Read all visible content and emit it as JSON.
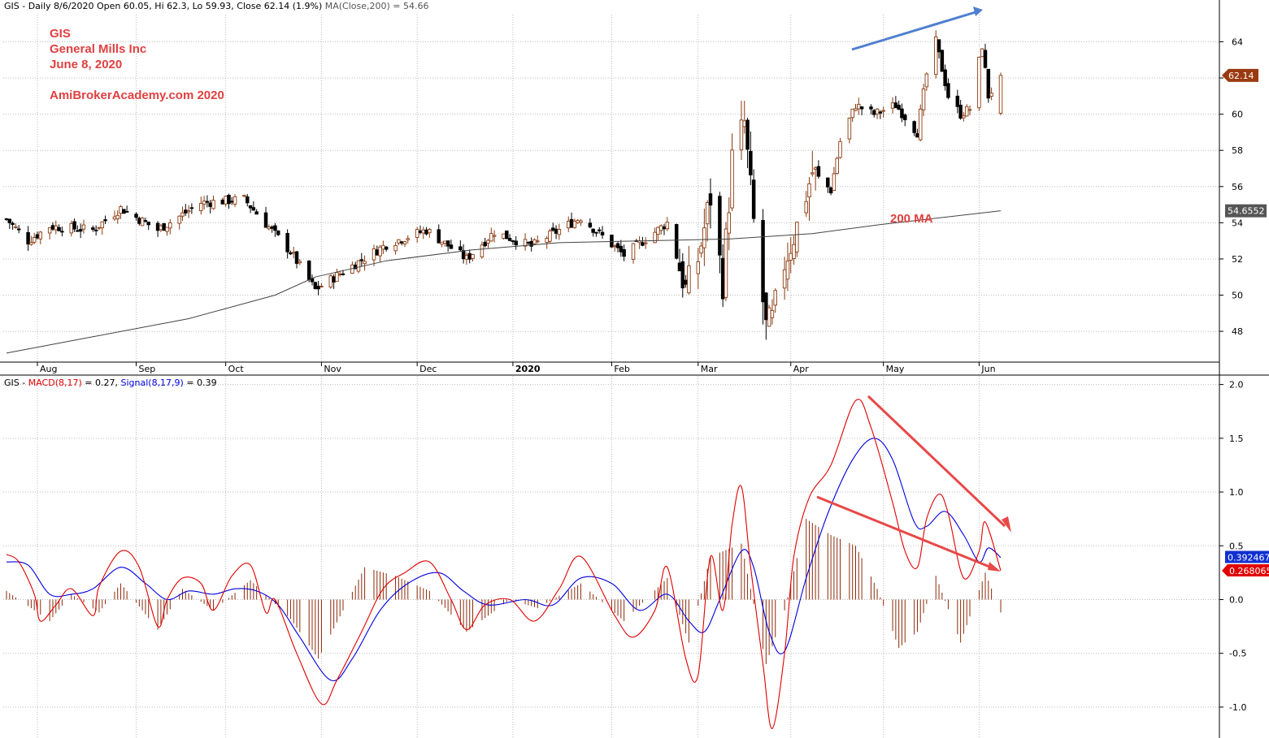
{
  "price_panel": {
    "header_prefix": "GIS - Daily 8/6/2020 Open 60.05, Hi 62.3, Lo 59.93, Close 62.14 (1.9%)",
    "header_ma": "MA(Close,200) = 54.66",
    "annotation_lines": [
      "GIS",
      "General Mills Inc",
      "June 8, 2020"
    ],
    "annotation_site": "AmiBrokerAcademy.com  2020",
    "ma_label": "200 MA",
    "last_close_label": "62.14",
    "ma_value_label": "54.6552",
    "y_ticks": [
      "64",
      "62",
      "60",
      "58",
      "56",
      "54",
      "52",
      "50",
      "48"
    ],
    "x_labels": [
      "Aug",
      "Sep",
      "Oct",
      "Nov",
      "Dec",
      "2020",
      "Feb",
      "Mar",
      "Apr",
      "May",
      "Jun"
    ]
  },
  "macd_panel": {
    "header_prefix": "GIS -",
    "macd_label": "MACD(8,17)",
    "macd_value": "= 0.27,",
    "signal_label": "Signal(8,17,9)",
    "signal_value": "= 0.39",
    "signal_value_label": "0.392467",
    "macd_value_label": "0.268065",
    "y_ticks": [
      "2.0",
      "1.5",
      "1.0",
      "0.5",
      "0.0",
      "-0.5",
      "-1.0"
    ]
  },
  "colors": {
    "up_candle": "#8b3a0f",
    "down_candle": "#000000",
    "macd": "#e00000",
    "signal": "#0000e0",
    "histogram": "#8b2a0a",
    "annotation": "#e04040",
    "blue_arrow": "#4f7fd0",
    "red_arrow": "#e84848"
  },
  "chart_data": [
    {
      "type": "candlestick",
      "title": "GIS - Daily 8/6/2020",
      "ylim": [
        46.3,
        65.5
      ],
      "x_labels": [
        "Aug",
        "Sep",
        "Oct",
        "Nov",
        "Dec",
        "2020",
        "Feb",
        "Mar",
        "Apr",
        "May",
        "Jun"
      ],
      "price_keypoints": [
        {
          "date": "2019-07-22",
          "close": 54.2
        },
        {
          "date": "2019-07-29",
          "close": 53.0
        },
        {
          "date": "2019-08-05",
          "close": 53.8
        },
        {
          "date": "2019-08-19",
          "close": 53.6
        },
        {
          "date": "2019-08-28",
          "close": 54.8
        },
        {
          "date": "2019-09-09",
          "close": 53.6
        },
        {
          "date": "2019-09-23",
          "close": 55.1
        },
        {
          "date": "2019-10-07",
          "close": 55.3
        },
        {
          "date": "2019-10-22",
          "close": 52.4
        },
        {
          "date": "2019-10-30",
          "close": 50.3
        },
        {
          "date": "2019-11-08",
          "close": 51.3
        },
        {
          "date": "2019-11-22",
          "close": 52.8
        },
        {
          "date": "2019-12-05",
          "close": 53.6
        },
        {
          "date": "2019-12-18",
          "close": 52.0
        },
        {
          "date": "2019-12-27",
          "close": 53.5
        },
        {
          "date": "2020-01-08",
          "close": 52.7
        },
        {
          "date": "2020-01-24",
          "close": 54.3
        },
        {
          "date": "2020-02-07",
          "close": 52.2
        },
        {
          "date": "2020-02-21",
          "close": 54.0
        },
        {
          "date": "2020-02-27",
          "close": 50.3
        },
        {
          "date": "2020-03-02",
          "close": 52.0
        },
        {
          "date": "2020-03-06",
          "close": 55.4
        },
        {
          "date": "2020-03-10",
          "close": 50.7
        },
        {
          "date": "2020-03-13",
          "close": 57.5
        },
        {
          "date": "2020-03-17",
          "close": 59.5
        },
        {
          "date": "2020-03-20",
          "close": 54.0
        },
        {
          "date": "2020-03-24",
          "close": 48.2
        },
        {
          "date": "2020-03-26",
          "close": 48.6
        },
        {
          "date": "2020-03-30",
          "close": 51.8
        },
        {
          "date": "2020-04-03",
          "close": 53.8
        },
        {
          "date": "2020-04-08",
          "close": 56.8
        },
        {
          "date": "2020-04-14",
          "close": 55.8
        },
        {
          "date": "2020-04-17",
          "close": 58.5
        },
        {
          "date": "2020-04-22",
          "close": 60.5
        },
        {
          "date": "2020-04-28",
          "close": 60.0
        },
        {
          "date": "2020-05-05",
          "close": 60.5
        },
        {
          "date": "2020-05-12",
          "close": 59.0
        },
        {
          "date": "2020-05-15",
          "close": 62.2
        },
        {
          "date": "2020-05-18",
          "close": 64.0
        },
        {
          "date": "2020-05-22",
          "close": 61.0
        },
        {
          "date": "2020-05-26",
          "close": 60.0
        },
        {
          "date": "2020-05-29",
          "close": 60.3
        },
        {
          "date": "2020-06-02",
          "close": 63.8
        },
        {
          "date": "2020-06-04",
          "close": 61.0
        },
        {
          "date": "2020-06-08",
          "close": 62.14
        }
      ],
      "ma200_keypoints": [
        {
          "date": "2019-07-22",
          "value": 46.8
        },
        {
          "date": "2019-08-19",
          "value": 47.7
        },
        {
          "date": "2019-09-19",
          "value": 48.7
        },
        {
          "date": "2019-10-17",
          "value": 50.0
        },
        {
          "date": "2019-10-30",
          "value": 51.0
        },
        {
          "date": "2019-11-22",
          "value": 51.9
        },
        {
          "date": "2019-12-20",
          "value": 52.5
        },
        {
          "date": "2020-01-17",
          "value": 52.9
        },
        {
          "date": "2020-02-14",
          "value": 53.0
        },
        {
          "date": "2020-03-12",
          "value": 53.1
        },
        {
          "date": "2020-04-08",
          "value": 53.4
        },
        {
          "date": "2020-04-30",
          "value": 53.9
        },
        {
          "date": "2020-06-08",
          "value": 54.66
        }
      ]
    },
    {
      "type": "line",
      "title": "MACD(8,17) / Signal(8,17,9)",
      "ylim": [
        -1.28,
        2.08
      ],
      "series": [
        {
          "name": "MACD(8,17)",
          "last": 0.27,
          "values": [
            {
              "date": "2019-07-22",
              "v": 0.42
            },
            {
              "date": "2019-07-26",
              "v": 0.35
            },
            {
              "date": "2019-07-31",
              "v": 0.05
            },
            {
              "date": "2019-08-02",
              "v": -0.2
            },
            {
              "date": "2019-08-07",
              "v": -0.05
            },
            {
              "date": "2019-08-12",
              "v": 0.1
            },
            {
              "date": "2019-08-19",
              "v": -0.15
            },
            {
              "date": "2019-08-21",
              "v": 0.12
            },
            {
              "date": "2019-08-28",
              "v": 0.45
            },
            {
              "date": "2019-09-03",
              "v": 0.3
            },
            {
              "date": "2019-09-09",
              "v": -0.25
            },
            {
              "date": "2019-09-12",
              "v": 0.0
            },
            {
              "date": "2019-09-17",
              "v": 0.2
            },
            {
              "date": "2019-09-23",
              "v": 0.15
            },
            {
              "date": "2019-09-27",
              "v": -0.1
            },
            {
              "date": "2019-10-03",
              "v": 0.22
            },
            {
              "date": "2019-10-09",
              "v": 0.32
            },
            {
              "date": "2019-10-14",
              "v": -0.12
            },
            {
              "date": "2019-10-17",
              "v": 0.0
            },
            {
              "date": "2019-10-24",
              "v": -0.5
            },
            {
              "date": "2019-11-01",
              "v": -0.97
            },
            {
              "date": "2019-11-06",
              "v": -0.75
            },
            {
              "date": "2019-11-14",
              "v": -0.3
            },
            {
              "date": "2019-11-21",
              "v": 0.1
            },
            {
              "date": "2019-11-28",
              "v": 0.25
            },
            {
              "date": "2019-12-06",
              "v": 0.35
            },
            {
              "date": "2019-12-13",
              "v": 0.0
            },
            {
              "date": "2019-12-18",
              "v": -0.28
            },
            {
              "date": "2019-12-24",
              "v": -0.05
            },
            {
              "date": "2020-01-01",
              "v": 0.0
            },
            {
              "date": "2020-01-09",
              "v": -0.2
            },
            {
              "date": "2020-01-17",
              "v": 0.1
            },
            {
              "date": "2020-01-24",
              "v": 0.4
            },
            {
              "date": "2020-02-04",
              "v": -0.15
            },
            {
              "date": "2020-02-10",
              "v": -0.35
            },
            {
              "date": "2020-02-17",
              "v": -0.1
            },
            {
              "date": "2020-02-21",
              "v": 0.3
            },
            {
              "date": "2020-02-27",
              "v": -0.55
            },
            {
              "date": "2020-03-02",
              "v": -0.7
            },
            {
              "date": "2020-03-06",
              "v": 0.4
            },
            {
              "date": "2020-03-10",
              "v": -0.1
            },
            {
              "date": "2020-03-13",
              "v": 0.7
            },
            {
              "date": "2020-03-16",
              "v": 1.05
            },
            {
              "date": "2020-03-19",
              "v": 0.3
            },
            {
              "date": "2020-03-23",
              "v": -0.6
            },
            {
              "date": "2020-03-26",
              "v": -1.2
            },
            {
              "date": "2020-03-30",
              "v": -0.5
            },
            {
              "date": "2020-04-02",
              "v": 0.4
            },
            {
              "date": "2020-04-07",
              "v": 0.95
            },
            {
              "date": "2020-04-14",
              "v": 1.25
            },
            {
              "date": "2020-04-22",
              "v": 1.85
            },
            {
              "date": "2020-04-27",
              "v": 1.6
            },
            {
              "date": "2020-05-04",
              "v": 0.9
            },
            {
              "date": "2020-05-08",
              "v": 0.45
            },
            {
              "date": "2020-05-12",
              "v": 0.3
            },
            {
              "date": "2020-05-15",
              "v": 0.75
            },
            {
              "date": "2020-05-19",
              "v": 0.98
            },
            {
              "date": "2020-05-22",
              "v": 0.8
            },
            {
              "date": "2020-05-27",
              "v": 0.2
            },
            {
              "date": "2020-06-01",
              "v": 0.45
            },
            {
              "date": "2020-06-03",
              "v": 0.72
            },
            {
              "date": "2020-06-08",
              "v": 0.27
            }
          ]
        },
        {
          "name": "Signal(8,17,9)",
          "last": 0.39,
          "values": [
            {
              "date": "2019-07-22",
              "v": 0.35
            },
            {
              "date": "2019-07-29",
              "v": 0.32
            },
            {
              "date": "2019-08-05",
              "v": 0.05
            },
            {
              "date": "2019-08-12",
              "v": 0.05
            },
            {
              "date": "2019-08-19",
              "v": 0.1
            },
            {
              "date": "2019-08-28",
              "v": 0.3
            },
            {
              "date": "2019-09-05",
              "v": 0.15
            },
            {
              "date": "2019-09-12",
              "v": 0.0
            },
            {
              "date": "2019-09-19",
              "v": 0.08
            },
            {
              "date": "2019-09-27",
              "v": 0.05
            },
            {
              "date": "2019-10-04",
              "v": 0.1
            },
            {
              "date": "2019-10-11",
              "v": 0.08
            },
            {
              "date": "2019-10-18",
              "v": -0.05
            },
            {
              "date": "2019-10-25",
              "v": -0.35
            },
            {
              "date": "2019-11-04",
              "v": -0.75
            },
            {
              "date": "2019-11-11",
              "v": -0.55
            },
            {
              "date": "2019-11-20",
              "v": -0.1
            },
            {
              "date": "2019-11-29",
              "v": 0.15
            },
            {
              "date": "2019-12-09",
              "v": 0.25
            },
            {
              "date": "2019-12-17",
              "v": 0.08
            },
            {
              "date": "2019-12-25",
              "v": -0.05
            },
            {
              "date": "2020-01-06",
              "v": 0.0
            },
            {
              "date": "2020-01-15",
              "v": -0.05
            },
            {
              "date": "2020-01-24",
              "v": 0.2
            },
            {
              "date": "2020-02-03",
              "v": 0.15
            },
            {
              "date": "2020-02-12",
              "v": -0.1
            },
            {
              "date": "2020-02-21",
              "v": 0.05
            },
            {
              "date": "2020-02-28",
              "v": -0.2
            },
            {
              "date": "2020-03-04",
              "v": -0.3
            },
            {
              "date": "2020-03-09",
              "v": 0.0
            },
            {
              "date": "2020-03-16",
              "v": 0.45
            },
            {
              "date": "2020-03-20",
              "v": 0.3
            },
            {
              "date": "2020-03-25",
              "v": -0.3
            },
            {
              "date": "2020-03-30",
              "v": -0.48
            },
            {
              "date": "2020-04-06",
              "v": 0.2
            },
            {
              "date": "2020-04-13",
              "v": 0.8
            },
            {
              "date": "2020-04-21",
              "v": 1.3
            },
            {
              "date": "2020-04-28",
              "v": 1.5
            },
            {
              "date": "2020-05-04",
              "v": 1.3
            },
            {
              "date": "2020-05-11",
              "v": 0.72
            },
            {
              "date": "2020-05-15",
              "v": 0.68
            },
            {
              "date": "2020-05-21",
              "v": 0.82
            },
            {
              "date": "2020-05-27",
              "v": 0.6
            },
            {
              "date": "2020-06-01",
              "v": 0.35
            },
            {
              "date": "2020-06-04",
              "v": 0.48
            },
            {
              "date": "2020-06-08",
              "v": 0.39
            }
          ]
        },
        {
          "name": "Histogram",
          "values": [
            {
              "date": "2019-07-22",
              "v": 0.08
            },
            {
              "date": "2019-07-31",
              "v": -0.1
            },
            {
              "date": "2019-08-05",
              "v": -0.2
            },
            {
              "date": "2019-08-12",
              "v": 0.05
            },
            {
              "date": "2019-08-21",
              "v": -0.12
            },
            {
              "date": "2019-08-28",
              "v": 0.15
            },
            {
              "date": "2019-09-09",
              "v": -0.28
            },
            {
              "date": "2019-09-17",
              "v": 0.1
            },
            {
              "date": "2019-09-27",
              "v": -0.1
            },
            {
              "date": "2019-10-09",
              "v": 0.18
            },
            {
              "date": "2019-10-22",
              "v": -0.18
            },
            {
              "date": "2019-10-31",
              "v": -0.55
            },
            {
              "date": "2019-11-08",
              "v": -0.1
            },
            {
              "date": "2019-11-15",
              "v": 0.3
            },
            {
              "date": "2019-11-25",
              "v": 0.22
            },
            {
              "date": "2019-12-06",
              "v": 0.08
            },
            {
              "date": "2019-12-18",
              "v": -0.3
            },
            {
              "date": "2020-01-01",
              "v": 0.0
            },
            {
              "date": "2020-01-10",
              "v": -0.08
            },
            {
              "date": "2020-01-24",
              "v": 0.15
            },
            {
              "date": "2020-02-07",
              "v": -0.2
            },
            {
              "date": "2020-02-21",
              "v": 0.2
            },
            {
              "date": "2020-02-28",
              "v": -0.4
            },
            {
              "date": "2020-03-06",
              "v": 0.4
            },
            {
              "date": "2020-03-16",
              "v": 0.52
            },
            {
              "date": "2020-03-24",
              "v": -0.6
            },
            {
              "date": "2020-03-30",
              "v": -0.1
            },
            {
              "date": "2020-04-06",
              "v": 0.75
            },
            {
              "date": "2020-04-14",
              "v": 0.6
            },
            {
              "date": "2020-04-22",
              "v": 0.5
            },
            {
              "date": "2020-04-29",
              "v": 0.1
            },
            {
              "date": "2020-05-06",
              "v": -0.45
            },
            {
              "date": "2020-05-12",
              "v": -0.3
            },
            {
              "date": "2020-05-18",
              "v": 0.22
            },
            {
              "date": "2020-05-26",
              "v": -0.4
            },
            {
              "date": "2020-06-03",
              "v": 0.25
            },
            {
              "date": "2020-06-08",
              "v": -0.12
            }
          ]
        }
      ]
    }
  ]
}
